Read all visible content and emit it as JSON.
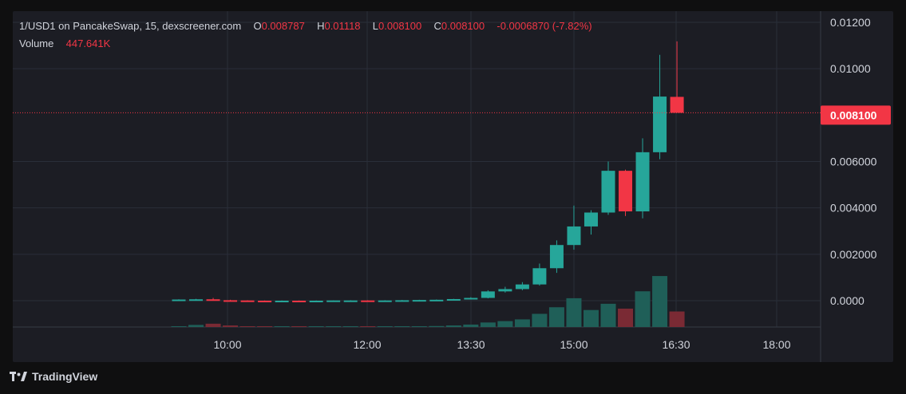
{
  "header": {
    "symbol": "1/USD1 on PancakeSwap, 15, dexscreener.com",
    "o_label": "O",
    "o_value": "0.008787",
    "h_label": "H",
    "h_value": "0.01118",
    "l_label": "L",
    "l_value": "0.008100",
    "c_label": "C",
    "c_value": "0.008100",
    "change": "-0.0006870 (-7.82%)",
    "volume_label": "Volume",
    "volume_value": "447.641K"
  },
  "footer": {
    "brand": "TradingView",
    "logo_icon": "tradingview-logo-icon"
  },
  "colors": {
    "up": "#26a69a",
    "down": "#f23645",
    "vol_up": "#1f5f58",
    "vol_down": "#7a2a34",
    "grid": "#2a2e39",
    "text": "#d1d4dc",
    "bg": "#1c1d24"
  },
  "chart_data": {
    "type": "candlestick",
    "interval_minutes": 15,
    "x_ticks": [
      "10:00",
      "12:00",
      "13:30",
      "15:00",
      "16:30",
      "18:00"
    ],
    "y_ticks": [
      "0.01200",
      "0.01000",
      "0.008100",
      "0.006000",
      "0.004000",
      "0.002000",
      "0.0000"
    ],
    "y_range": [
      -0.001,
      0.0125
    ],
    "last_price": "0.008100",
    "candles": [
      {
        "o": 3e-05,
        "h": 6e-05,
        "l": 1e-05,
        "c": 5e-05,
        "v": 3000
      },
      {
        "o": 5e-05,
        "h": 8e-05,
        "l": 3e-05,
        "c": 6e-05,
        "v": 60000
      },
      {
        "o": 6e-05,
        "h": 0.00012,
        "l": 1e-05,
        "c": 2e-05,
        "v": 95000
      },
      {
        "o": 2e-05,
        "h": 4e-05,
        "l": 0.0,
        "c": 1e-05,
        "v": 45000
      },
      {
        "o": 1e-05,
        "h": 2e-05,
        "l": -1e-05,
        "c": 0.0,
        "v": 22000
      },
      {
        "o": 0.0,
        "h": 1e-05,
        "l": -2e-05,
        "c": -1e-05,
        "v": 12000
      },
      {
        "o": -1e-05,
        "h": 1e-05,
        "l": -2e-05,
        "c": 0.0,
        "v": 10000
      },
      {
        "o": 0.0,
        "h": 1e-05,
        "l": -2e-05,
        "c": -1e-05,
        "v": 15000
      },
      {
        "o": -1e-05,
        "h": 1e-05,
        "l": -2e-05,
        "c": 0.0,
        "v": 8000
      },
      {
        "o": 0.0,
        "h": 1e-05,
        "l": -1e-05,
        "c": 1e-05,
        "v": 8000
      },
      {
        "o": 1e-05,
        "h": 2e-05,
        "l": -1e-05,
        "c": 1e-05,
        "v": 8000
      },
      {
        "o": 1e-05,
        "h": 2e-05,
        "l": -1e-05,
        "c": 0.0,
        "v": 10000
      },
      {
        "o": 0.0,
        "h": 2e-05,
        "l": -1e-05,
        "c": 1e-05,
        "v": 12000
      },
      {
        "o": 1e-05,
        "h": 3e-05,
        "l": 0.0,
        "c": 2e-05,
        "v": 15000
      },
      {
        "o": 2e-05,
        "h": 4e-05,
        "l": 1e-05,
        "c": 3e-05,
        "v": 20000
      },
      {
        "o": 3e-05,
        "h": 5e-05,
        "l": 2e-05,
        "c": 4e-05,
        "v": 28000
      },
      {
        "o": 4e-05,
        "h": 8e-05,
        "l": 3e-05,
        "c": 7e-05,
        "v": 45000
      },
      {
        "o": 7e-05,
        "h": 0.00015,
        "l": 5e-05,
        "c": 0.00012,
        "v": 70000
      },
      {
        "o": 0.00012,
        "h": 0.00045,
        "l": 0.0001,
        "c": 0.0004,
        "v": 130000
      },
      {
        "o": 0.0004,
        "h": 0.0006,
        "l": 0.00035,
        "c": 0.0005,
        "v": 170000
      },
      {
        "o": 0.0005,
        "h": 0.0008,
        "l": 0.00045,
        "c": 0.0007,
        "v": 220000
      },
      {
        "o": 0.0007,
        "h": 0.0016,
        "l": 0.00065,
        "c": 0.0014,
        "v": 380000
      },
      {
        "o": 0.0014,
        "h": 0.0026,
        "l": 0.0012,
        "c": 0.0024,
        "v": 570000
      },
      {
        "o": 0.0024,
        "h": 0.0041,
        "l": 0.0022,
        "c": 0.0032,
        "v": 830000
      },
      {
        "o": 0.0032,
        "h": 0.0039,
        "l": 0.00285,
        "c": 0.0038,
        "v": 490000
      },
      {
        "o": 0.0038,
        "h": 0.006,
        "l": 0.0037,
        "c": 0.0056,
        "v": 670000
      },
      {
        "o": 0.0056,
        "h": 0.00565,
        "l": 0.00365,
        "c": 0.00385,
        "v": 530000
      },
      {
        "o": 0.00385,
        "h": 0.007,
        "l": 0.00355,
        "c": 0.0064,
        "v": 1030000
      },
      {
        "o": 0.0064,
        "h": 0.0106,
        "l": 0.0061,
        "c": 0.0088,
        "v": 1470000
      },
      {
        "o": 0.008787,
        "h": 0.01118,
        "l": 0.0081,
        "c": 0.0081,
        "v": 447641
      }
    ]
  }
}
